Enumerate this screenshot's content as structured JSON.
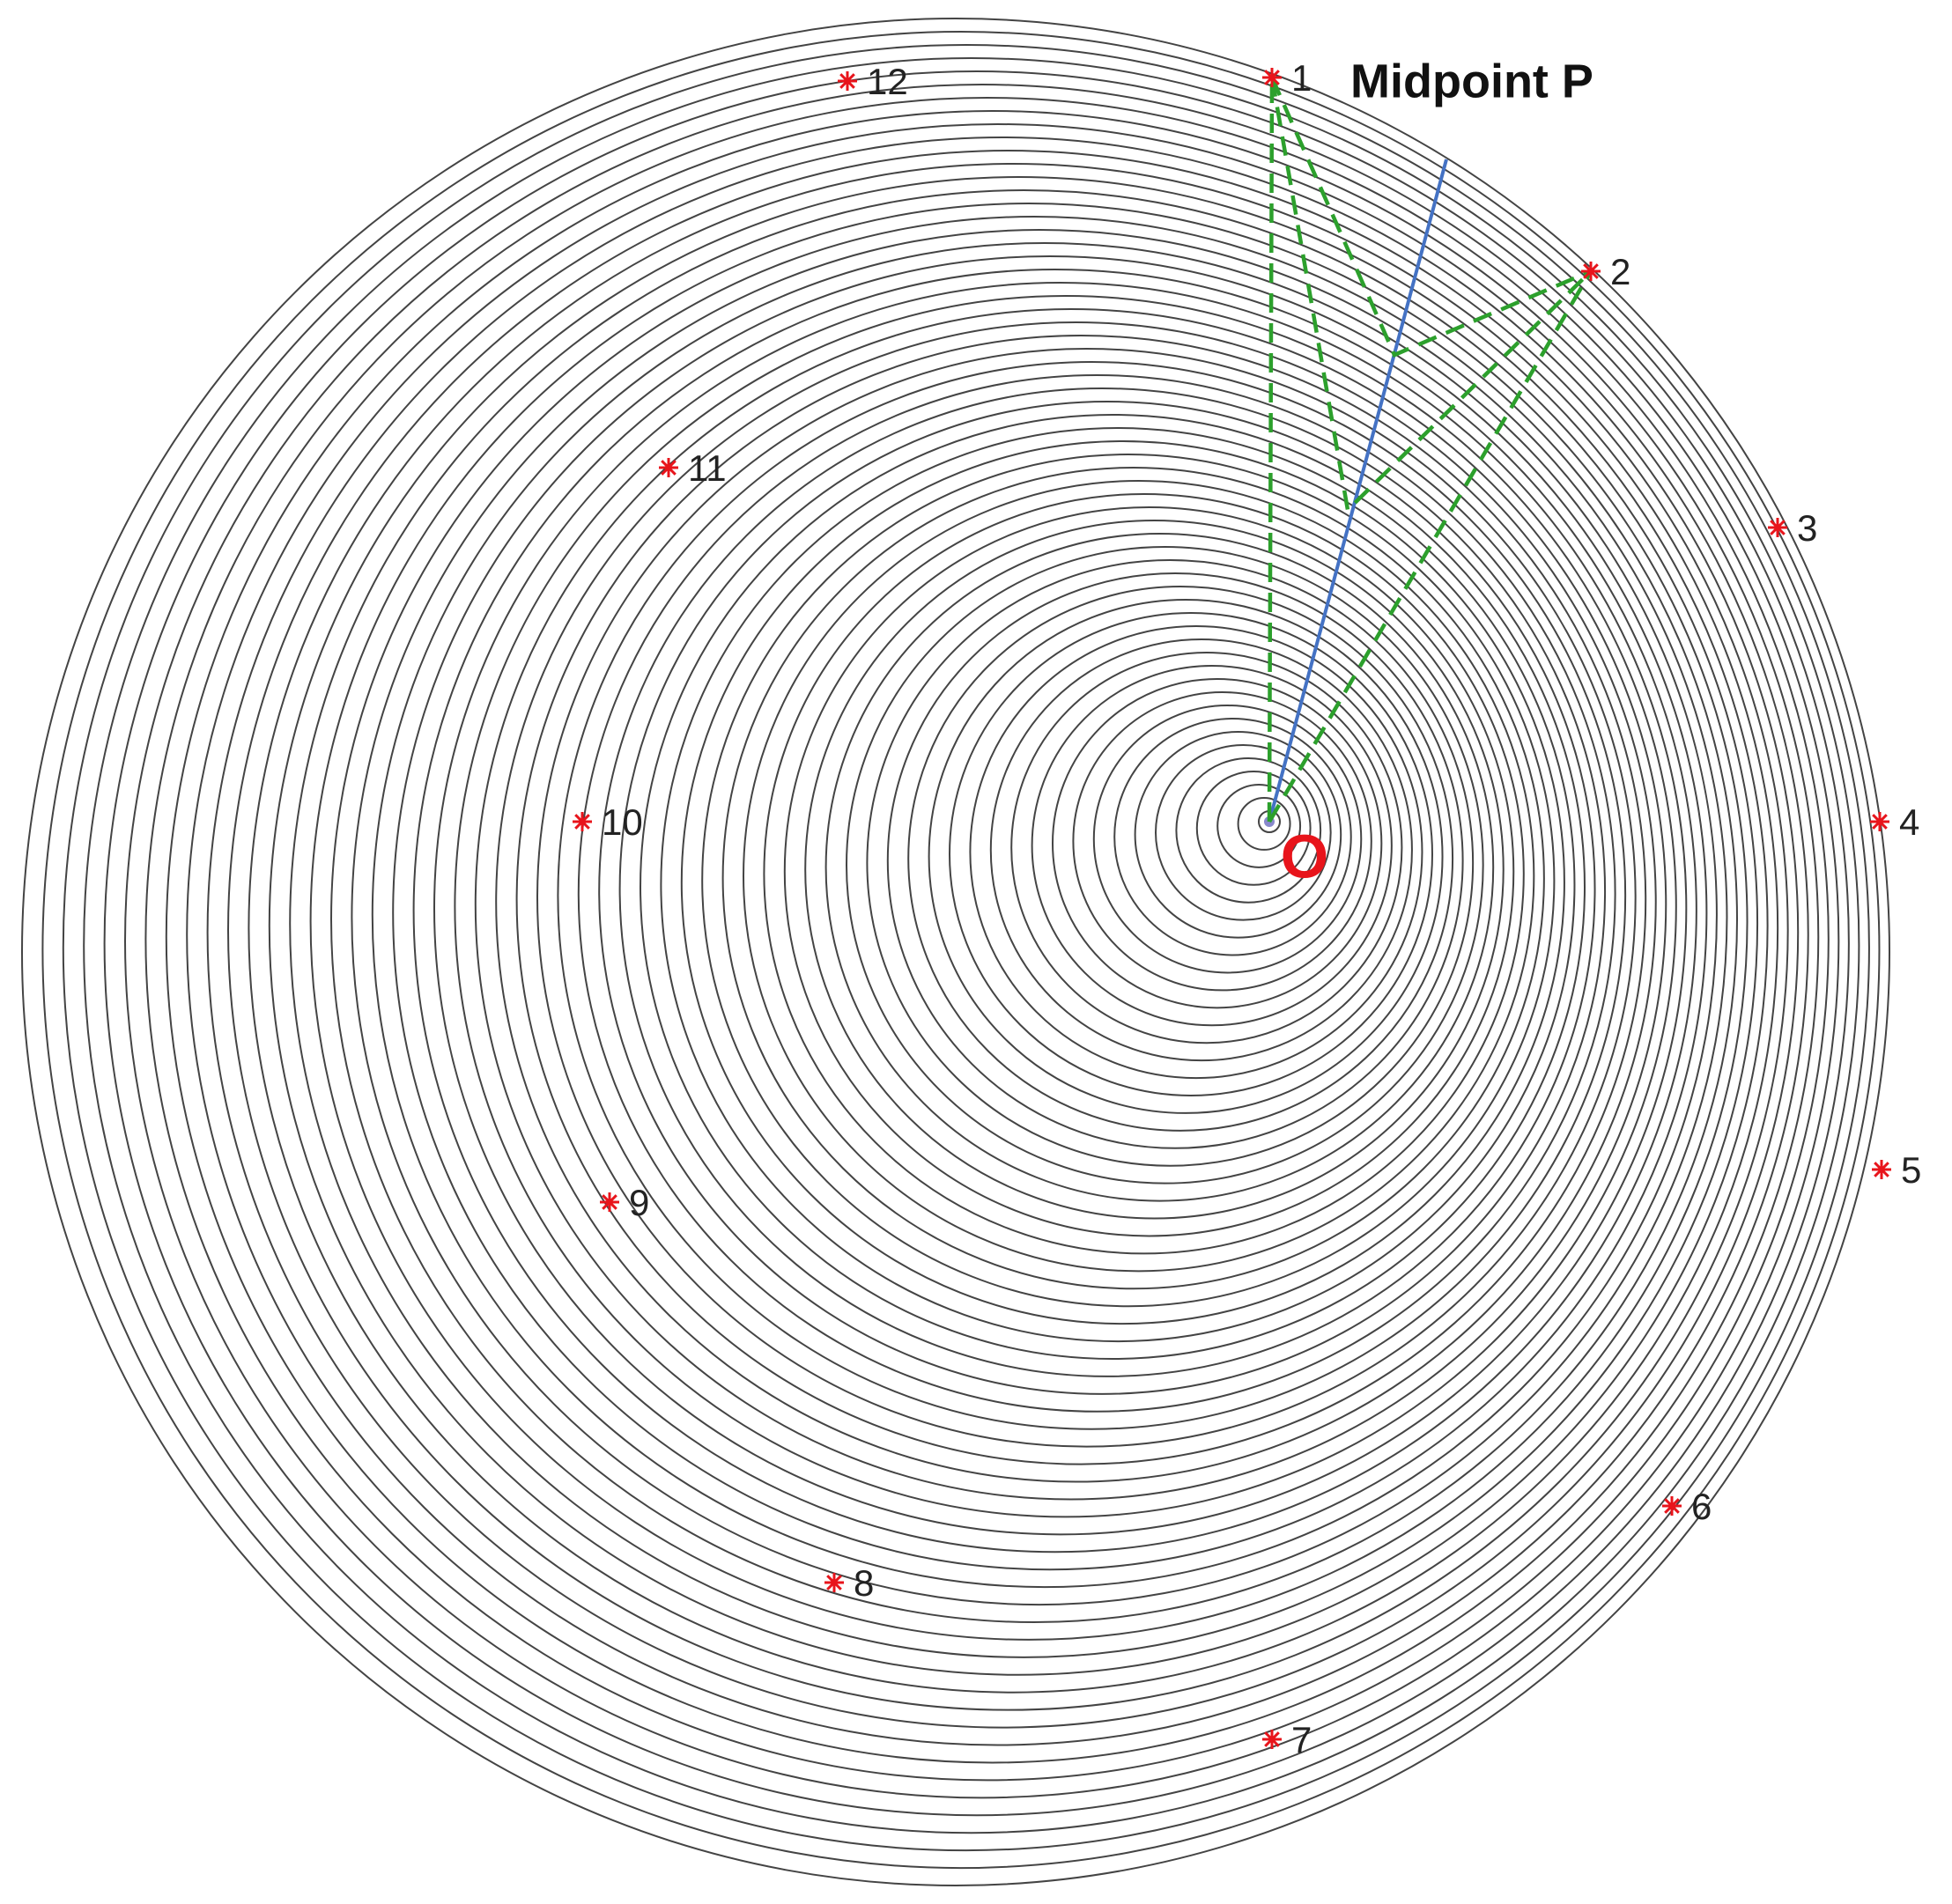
{
  "points": [
    {
      "label": "1"
    },
    {
      "label": "2"
    },
    {
      "label": "3"
    },
    {
      "label": "4"
    },
    {
      "label": "5"
    },
    {
      "label": "6"
    },
    {
      "label": "7"
    },
    {
      "label": "8"
    },
    {
      "label": "9"
    },
    {
      "label": "10"
    },
    {
      "label": "11"
    },
    {
      "label": "12"
    }
  ],
  "midpoint_label": "Midpoint P",
  "origin_label": "O"
}
